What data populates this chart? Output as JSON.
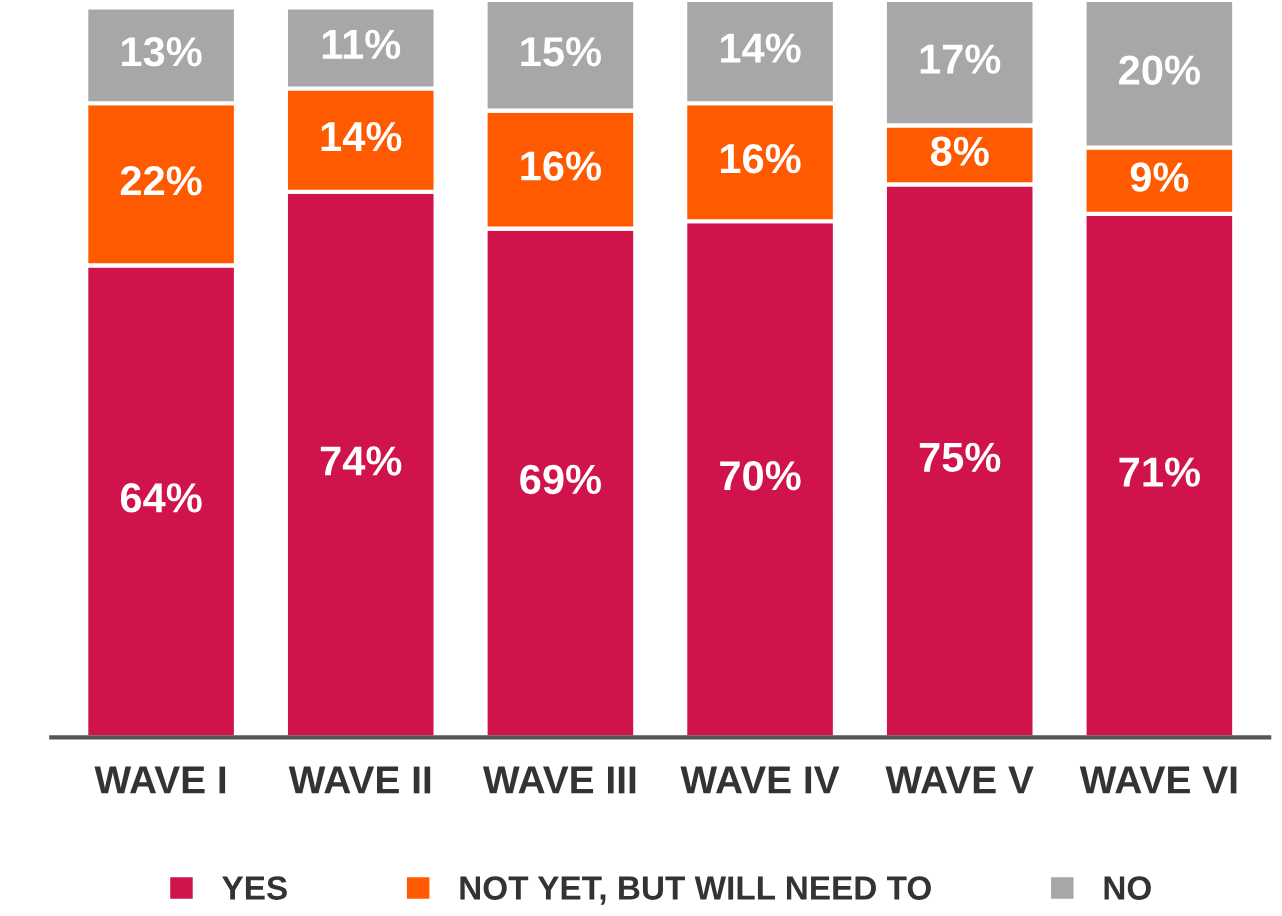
{
  "chart_data": {
    "type": "bar",
    "stacked": true,
    "categories": [
      "WAVE I",
      "WAVE II",
      "WAVE III",
      "WAVE IV",
      "WAVE V",
      "WAVE VI"
    ],
    "series": [
      {
        "name": "YES",
        "color": "#d0134a",
        "values": [
          64,
          74,
          69,
          70,
          75,
          71
        ],
        "value_labels": [
          "64%",
          "74%",
          "69%",
          "70%",
          "75%",
          "71%"
        ]
      },
      {
        "name": "NOT YET, BUT WILL NEED TO",
        "color": "#ff5a00",
        "values": [
          22,
          14,
          16,
          16,
          8,
          9
        ],
        "value_labels": [
          "22%",
          "14%",
          "16%",
          "16%",
          "8%",
          "9%"
        ]
      },
      {
        "name": "NO",
        "color": "#a7a7a9",
        "values": [
          13,
          11,
          15,
          14,
          17,
          20
        ],
        "value_labels": [
          "13%",
          "11%",
          "15%",
          "14%",
          "17%",
          "20%"
        ]
      }
    ],
    "ylim": [
      0,
      100
    ],
    "tick_labels": "x",
    "grid": false,
    "legend": "bottom"
  }
}
